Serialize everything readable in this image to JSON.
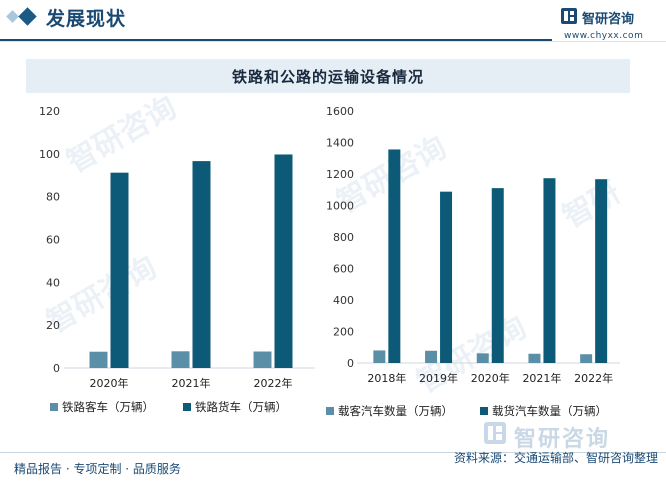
{
  "header": {
    "section_title": "发展现状",
    "brand_name": "智研咨询",
    "brand_url": "www.chyxx.com"
  },
  "chart_title": "铁路和公路的运输设备情况",
  "footer": {
    "left_text": "精品报告 · 专项定制 · 品质服务",
    "source_text": "资料来源：交通运输部、智研咨询整理",
    "brand_name": "智研咨询"
  },
  "colors": {
    "accent_dark": "#0d5a78",
    "accent_light": "#5b8fa8",
    "header_navy": "#1a4a73"
  },
  "chart_data": [
    {
      "type": "bar",
      "categories": [
        "2020年",
        "2021年",
        "2022年"
      ],
      "series": [
        {
          "name": "铁路客车（万辆）",
          "values": [
            7.6,
            7.8,
            7.7
          ],
          "color": "#5b8fa8"
        },
        {
          "name": "铁路货车（万辆）",
          "values": [
            91.2,
            96.6,
            99.7
          ],
          "color": "#0d5a78"
        }
      ],
      "ylim": [
        0,
        120
      ],
      "yticks": [
        0,
        20,
        40,
        60,
        80,
        100,
        120
      ],
      "title": "",
      "xlabel": "",
      "ylabel": "",
      "legend": "bottom",
      "grid": false
    },
    {
      "type": "bar",
      "categories": [
        "2018年",
        "2019年",
        "2020年",
        "2021年",
        "2022年"
      ],
      "series": [
        {
          "name": "载客汽车数量（万辆）",
          "values": [
            79.7,
            77.7,
            61.3,
            58.7,
            55.6
          ],
          "color": "#5b8fa8"
        },
        {
          "name": "载货汽车数量（万辆）",
          "values": [
            1355.8,
            1087.8,
            1110.3,
            1173.3,
            1167.0
          ],
          "color": "#0d5a78"
        }
      ],
      "ylim": [
        0,
        1600
      ],
      "yticks": [
        0,
        200,
        400,
        600,
        800,
        1000,
        1200,
        1400,
        1600
      ],
      "title": "",
      "xlabel": "",
      "ylabel": "",
      "legend": "bottom",
      "grid": false
    }
  ]
}
